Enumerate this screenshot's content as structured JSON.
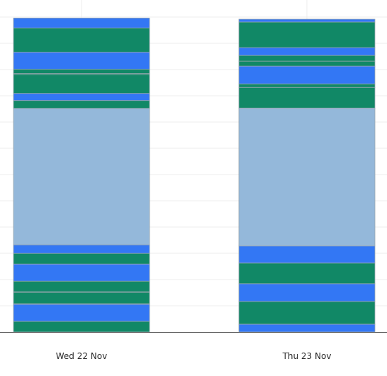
{
  "colors": {
    "background": "#ffffff",
    "grid": "#ececec",
    "axis": "#5a5a5a",
    "segment_border": "#9aa7b0"
  },
  "chart_data": {
    "type": "bar",
    "stacked": true,
    "title": "",
    "xlabel": "",
    "ylabel": "",
    "ylim": [
      0,
      445
    ],
    "grid": true,
    "y_tick_labels_shown": false,
    "categories": [
      "Wed 22 Nov",
      "Thu 23 Nov"
    ],
    "segment_order": "bottom-to-top",
    "stacks": [
      {
        "category": "Wed 22 Nov",
        "segments": [
          {
            "value": 15,
            "color": "#118866"
          },
          {
            "value": 24,
            "color": "#3377f4"
          },
          {
            "value": 0.8,
            "color": "#118866"
          },
          {
            "value": 16,
            "color": "#118866"
          },
          {
            "value": 0.8,
            "color": "#118866"
          },
          {
            "value": 15,
            "color": "#118866"
          },
          {
            "value": 24,
            "color": "#3377f4"
          },
          {
            "value": 15,
            "color": "#118866"
          },
          {
            "value": 12,
            "color": "#3377f4"
          },
          {
            "value": 192,
            "color": "#94b8da"
          },
          {
            "value": 11,
            "color": "#118866"
          },
          {
            "value": 10,
            "color": "#3377f4"
          },
          {
            "value": 26,
            "color": "#118866"
          },
          {
            "value": 2,
            "color": "#118866"
          },
          {
            "value": 6,
            "color": "#118866"
          },
          {
            "value": 24,
            "color": "#3377f4"
          },
          {
            "value": 34,
            "color": "#118866"
          },
          {
            "value": 14,
            "color": "#3377f4"
          }
        ]
      },
      {
        "category": "Thu 23 Nov",
        "segments": [
          {
            "value": 11,
            "color": "#3377f4"
          },
          {
            "value": 32,
            "color": "#118866"
          },
          {
            "value": 25,
            "color": "#3377f4"
          },
          {
            "value": 29,
            "color": "#118866"
          },
          {
            "value": 24,
            "color": "#3377f4"
          },
          {
            "value": 194,
            "color": "#94b8da"
          },
          {
            "value": 29,
            "color": "#118866"
          },
          {
            "value": 5,
            "color": "#118866"
          },
          {
            "value": 25,
            "color": "#3377f4"
          },
          {
            "value": 7,
            "color": "#118866"
          },
          {
            "value": 8,
            "color": "#118866"
          },
          {
            "value": 11,
            "color": "#3377f4"
          },
          {
            "value": 36,
            "color": "#118866"
          },
          {
            "value": 4,
            "color": "#3377f4"
          }
        ]
      }
    ]
  }
}
